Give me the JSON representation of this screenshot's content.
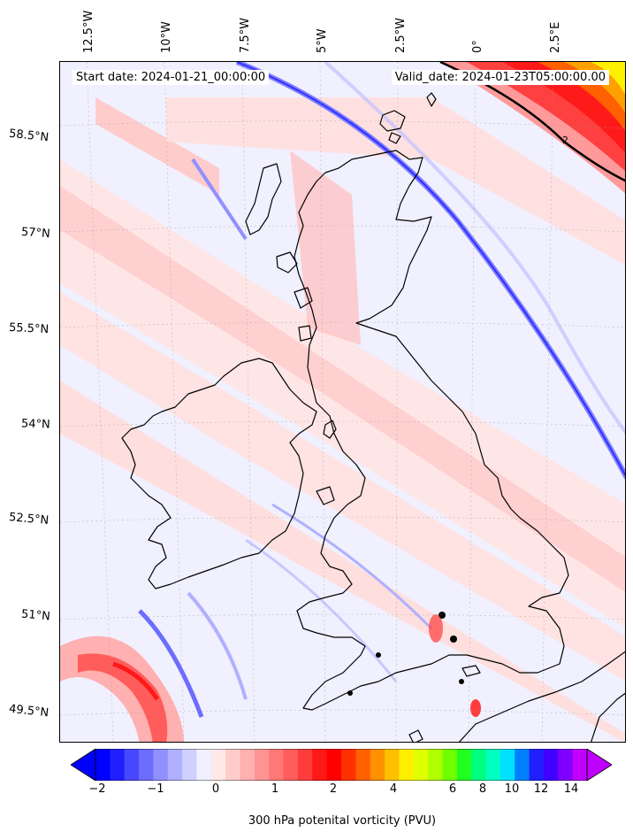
{
  "header": {
    "start_date": "Start date: 2024-01-21_00:00:00",
    "valid_date": "Valid_date: 2024-01-23T05:00:00.00"
  },
  "axes": {
    "longitude_labels": [
      "12.5°W",
      "10°W",
      "7.5°W",
      "5°W",
      "2.5°W",
      "0°",
      "2.5°E"
    ],
    "latitude_labels": [
      "58.5°N",
      "57°N",
      "55.5°N",
      "54°N",
      "52.5°N",
      "51°N",
      "49.5°N"
    ]
  },
  "colorbar": {
    "label": "300 hPa potenital vorticity (PVU)",
    "tick_labels": [
      "−2",
      "−1",
      "0",
      "1",
      "2",
      "4",
      "6",
      "8",
      "10",
      "12",
      "14"
    ],
    "colors": [
      "#0000ff",
      "#2020ff",
      "#4848ff",
      "#6c6cff",
      "#9090ff",
      "#b0b0ff",
      "#d0d0ff",
      "#f0f0ff",
      "#ffe8e8",
      "#ffcccc",
      "#ffb0b0",
      "#ff9494",
      "#ff7878",
      "#ff5c5c",
      "#ff3c3c",
      "#ff1818",
      "#ff0000",
      "#ff3000",
      "#ff6000",
      "#ff9000",
      "#ffc000",
      "#fff000",
      "#e0ff00",
      "#b0ff00",
      "#70ff00",
      "#20ff20",
      "#00ff80",
      "#00ffc0",
      "#00e0ff",
      "#0080ff",
      "#2020ff",
      "#4000ff",
      "#8000ff",
      "#c000ff"
    ]
  },
  "map": {
    "contour_label": "2"
  }
}
